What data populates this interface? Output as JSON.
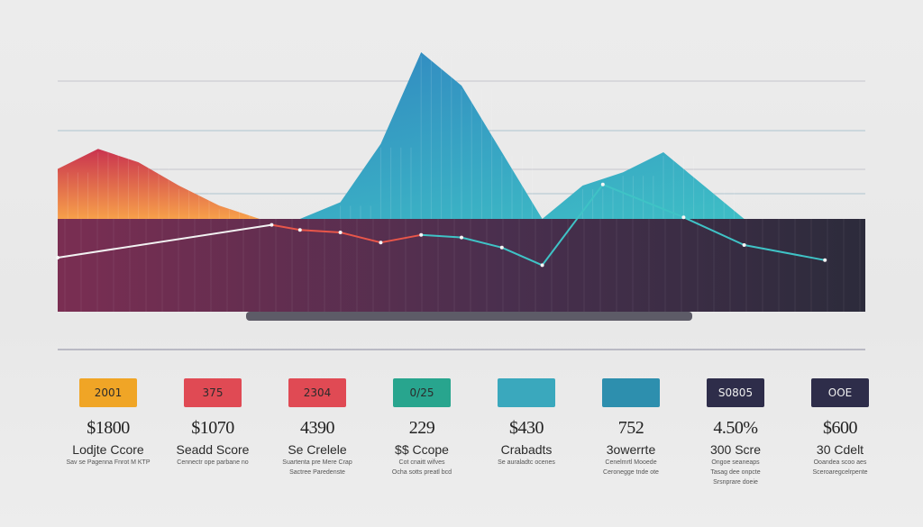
{
  "chart_data": {
    "type": "area",
    "x": [
      0,
      1,
      2,
      3,
      4,
      5,
      6,
      7,
      8,
      9,
      10,
      11,
      12,
      13,
      14,
      15,
      16,
      17,
      18,
      19,
      20
    ],
    "series": [
      {
        "values": [
          30,
          42,
          34,
          20,
          8,
          0,
          0,
          0,
          0,
          0,
          0,
          0,
          0,
          0,
          0,
          0,
          0,
          0,
          0,
          0,
          0
        ],
        "color": "#e05a3c"
      },
      {
        "values": [
          0,
          0,
          0,
          0,
          0,
          0,
          0,
          10,
          45,
          100,
          80,
          40,
          0,
          20,
          28,
          40,
          20,
          0,
          0,
          0,
          0
        ],
        "color": "#2ea3c8"
      }
    ],
    "trend_line": [
      {
        "x": 0,
        "y": 10
      },
      {
        "x": 5.3,
        "y": 36
      },
      {
        "x": 6,
        "y": 32
      },
      {
        "x": 7,
        "y": 30
      },
      {
        "x": 8,
        "y": 22
      },
      {
        "x": 9,
        "y": 28
      },
      {
        "x": 10,
        "y": 26
      },
      {
        "x": 11,
        "y": 18
      },
      {
        "x": 12,
        "y": 4
      },
      {
        "x": 13.5,
        "y": 68
      },
      {
        "x": 15.5,
        "y": 42
      },
      {
        "x": 17,
        "y": 20
      },
      {
        "x": 19,
        "y": 8
      }
    ],
    "ylim": [
      0,
      100
    ],
    "grid": true
  },
  "colors": {
    "band_left": "#7a2e52",
    "band_mid": "#4a2f4e",
    "band_right": "#302c3e"
  },
  "cards": [
    {
      "badge": "2001",
      "value": "$1800",
      "label": "Lodjte Ccore",
      "sub": [
        "Sav se Pagenna Fnrot M KTP"
      ],
      "color": "#f0a526",
      "dark": false
    },
    {
      "badge": "375",
      "value": "$1070",
      "label": "Seadd Score",
      "sub": [
        "Cennectr ope parbane no"
      ],
      "color": "#e04a54",
      "dark": false
    },
    {
      "badge": "2304",
      "value": "4390",
      "label": "Se Crelele",
      "sub": [
        "Suartenta pre Mere Crap",
        "Sactree Paredenste"
      ],
      "color": "#e04a54",
      "dark": false
    },
    {
      "badge": "0/25",
      "value": "229",
      "label": "$$ Ccope",
      "sub": [
        "Cot cnaitt wifves",
        "Ocha sotts preatl bcd"
      ],
      "color": "#28a58e",
      "dark": false
    },
    {
      "badge": "",
      "value": "$430",
      "label": "Crabadts",
      "sub": [
        "Se auraladtc ocenes"
      ],
      "color": "#3aa8bd",
      "dark": false
    },
    {
      "badge": "",
      "value": "752",
      "label": "3owerrte",
      "sub": [
        "Cenelmrtl Mooede",
        "Ceronegge tnde ote"
      ],
      "color": "#2d8fae",
      "dark": false
    },
    {
      "badge": "S0805",
      "value": "4.50%",
      "label": "300 Scre",
      "sub": [
        "Ongoe seaneaps",
        "Tasag dee onpcte",
        "Srsnprare doeie"
      ],
      "color": "#2e2d4a",
      "dark": true
    },
    {
      "badge": "OOE",
      "value": "$600",
      "label": "30 Cdelt",
      "sub": [
        "Ooandea scoo aes",
        "Sceroaregcelrpente"
      ],
      "color": "#2e2d4a",
      "dark": true
    }
  ]
}
